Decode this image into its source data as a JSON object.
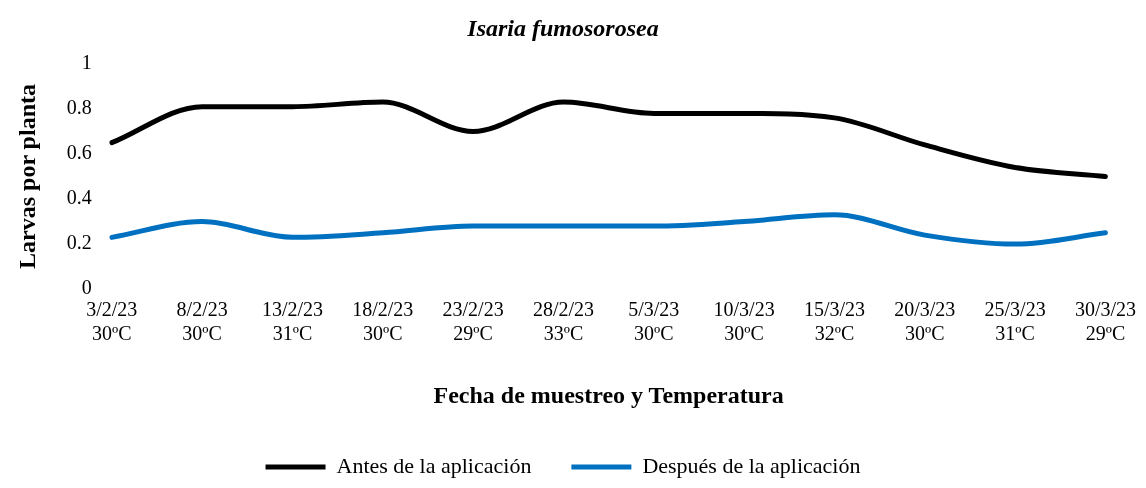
{
  "chart_data": {
    "type": "line",
    "title": "Isaria fumosorosea",
    "xlabel": "Fecha de muestreo y Temperatura",
    "ylabel": "Larvas por planta",
    "categories": [
      "3/2/23\n30ºC",
      "8/2/23\n30ºC",
      "13/2/23\n31ºC",
      "18/2/23\n30ºC",
      "23/2/23\n29ºC",
      "28/2/23\n33ºC",
      "5/3/23\n30ºC",
      "10/3/23\n30ºC",
      "15/3/23\n32ºC",
      "20/3/23\n30ºC",
      "25/3/23\n31ºC",
      "30/3/23\n29ºC"
    ],
    "series": [
      {
        "name": "Antes de la aplicación",
        "color": "#000000",
        "values": [
          0.65,
          0.81,
          0.81,
          0.83,
          0.7,
          0.83,
          0.78,
          0.78,
          0.76,
          0.64,
          0.54,
          0.5
        ]
      },
      {
        "name": "Después de la aplicación",
        "color": "#0070c0",
        "values": [
          0.23,
          0.3,
          0.23,
          0.25,
          0.28,
          0.28,
          0.28,
          0.3,
          0.33,
          0.24,
          0.2,
          0.25
        ]
      }
    ],
    "ylim": [
      0,
      1
    ],
    "yticks": [
      0,
      0.2,
      0.4,
      0.6,
      0.8,
      1
    ],
    "grid": false,
    "legend": "bottom",
    "marker": "none",
    "line_style": "solid"
  }
}
